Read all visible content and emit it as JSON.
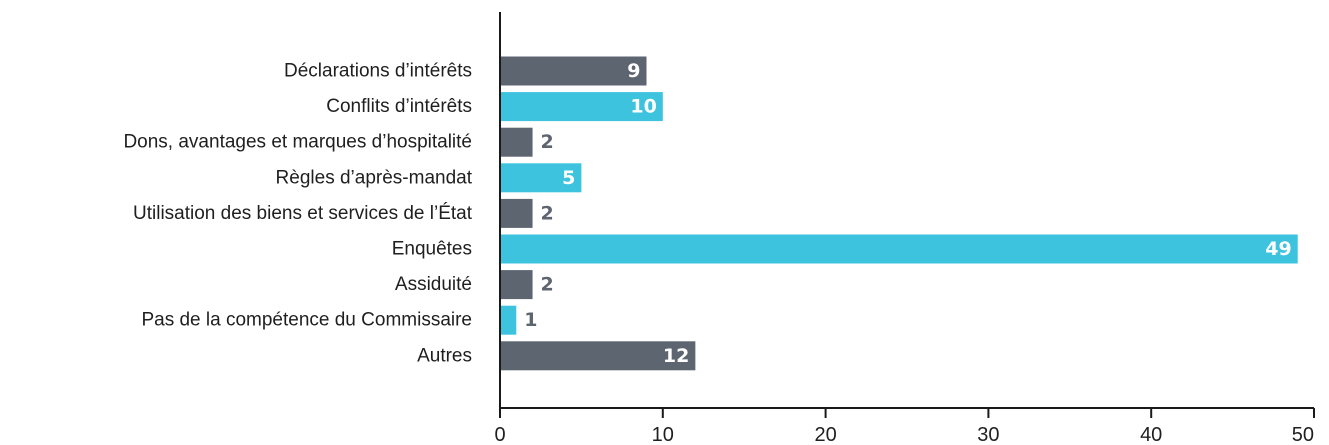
{
  "chart_data": {
    "type": "bar",
    "orientation": "horizontal",
    "categories": [
      "Déclarations d’intérêts",
      "Conflits d’intérêts",
      "Dons, avantages et marques d’hospitalité",
      "Règles d’après-mandat",
      "Utilisation des biens et services de l’État",
      "Enquêtes",
      "Assiduité",
      "Pas de la compétence du Commissaire",
      "Autres"
    ],
    "values": [
      9,
      10,
      2,
      5,
      2,
      49,
      2,
      1,
      12
    ],
    "title": "",
    "xlabel": "",
    "ylabel": "",
    "xlim": [
      0,
      50
    ],
    "xticks": [
      0,
      10,
      20,
      30,
      40,
      50
    ],
    "grid": false,
    "legend": "none",
    "colors": [
      "#5d6570",
      "#3dc3de"
    ],
    "value_label_colors": {
      "inside": "#ffffff",
      "outside": "#5d6570"
    }
  }
}
